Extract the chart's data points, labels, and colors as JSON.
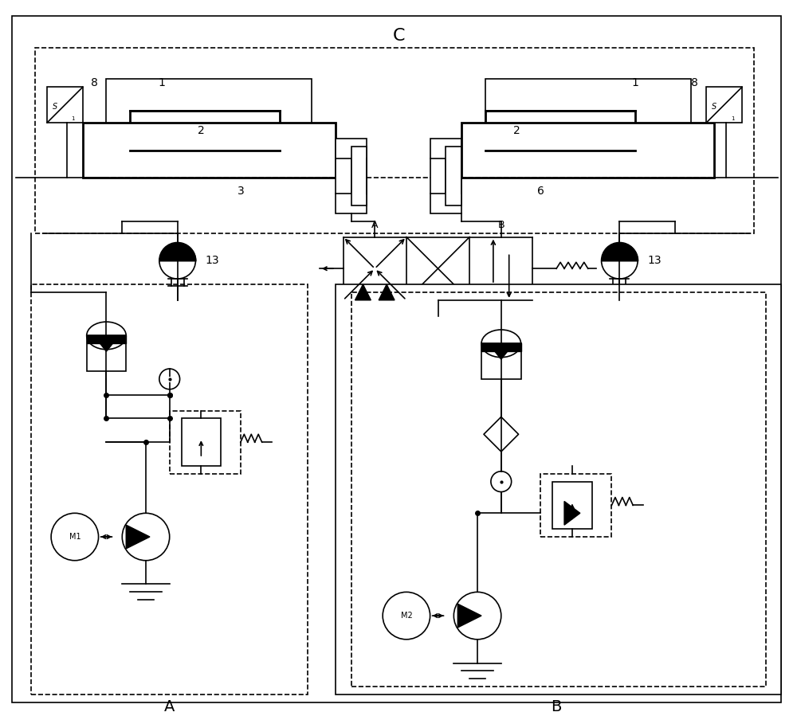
{
  "bg_color": "#ffffff",
  "line_color": "#000000",
  "fig_width": 10.0,
  "fig_height": 8.99,
  "label_C": "C",
  "label_A_section": "A",
  "label_B_section": "B"
}
